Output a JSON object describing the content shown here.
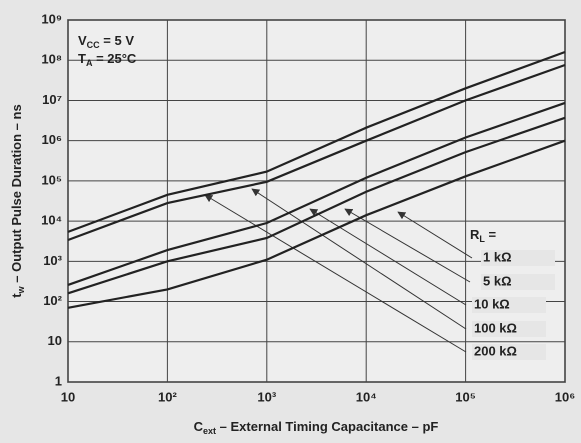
{
  "chart_data": {
    "type": "line",
    "xscale": "log",
    "yscale": "log",
    "grid": true,
    "xlabel": [
      "C",
      "ext",
      " – External Timing Capacitance – pF"
    ],
    "ylabel": [
      "t",
      "w",
      " – Output Pulse Duration – ns"
    ],
    "annotations": [
      [
        "V",
        "CC",
        " = 5 V"
      ],
      [
        "T",
        "A",
        " = 25°C"
      ]
    ],
    "legend_title": [
      "R",
      "L",
      " ="
    ],
    "x": [
      10,
      100,
      1000,
      10000,
      100000,
      1000000
    ],
    "xlim": [
      10,
      1000000
    ],
    "ylim": [
      1,
      1000000000
    ],
    "xticks": [
      10,
      {
        "value": 100,
        "label": "10²"
      },
      {
        "value": 1000,
        "label": "10³"
      },
      {
        "value": 10000,
        "label": "10⁴"
      },
      {
        "value": 100000,
        "label": "10⁵"
      },
      {
        "value": 1000000,
        "label": "10⁶"
      }
    ],
    "yticks": [
      1,
      10,
      {
        "value": 100,
        "label": "10²"
      },
      {
        "value": 1000,
        "label": "10³"
      },
      {
        "value": 10000,
        "label": "10⁴"
      },
      {
        "value": 100000,
        "label": "10⁵"
      },
      {
        "value": 1000000,
        "label": "10⁶"
      },
      {
        "value": 10000000,
        "label": "10⁷"
      },
      {
        "value": 100000000,
        "label": "10⁸"
      },
      {
        "value": 1000000000,
        "label": "10⁹"
      }
    ],
    "series": [
      {
        "name": "1 kΩ",
        "color": "#222222",
        "values": [
          70,
          200,
          1100,
          14000,
          130000,
          1000000
        ]
      },
      {
        "name": "5 kΩ",
        "color": "#222222",
        "values": [
          160,
          1000,
          3800,
          54000,
          520000,
          3700000
        ]
      },
      {
        "name": "10 kΩ",
        "color": "#222222",
        "values": [
          260,
          1900,
          9000,
          120000,
          1200000,
          8700000
        ]
      },
      {
        "name": "100 kΩ",
        "color": "#222222",
        "values": [
          3400,
          28000,
          95000,
          1000000,
          10000000,
          76000000
        ]
      },
      {
        "name": "200 kΩ",
        "color": "#222222",
        "values": [
          5400,
          45000,
          170000,
          2100000,
          20000000,
          160000000
        ]
      }
    ]
  }
}
